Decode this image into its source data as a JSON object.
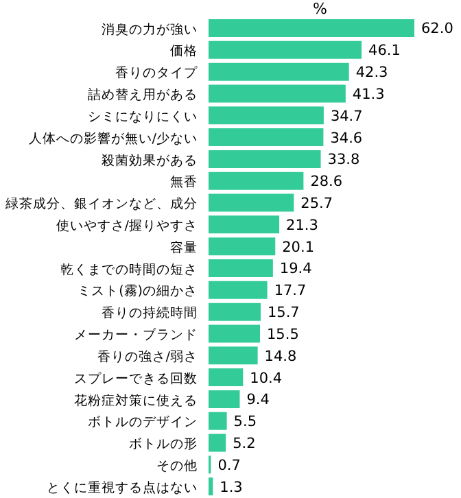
{
  "chart_data": {
    "type": "bar",
    "orientation": "horizontal",
    "xlabel": "%",
    "color": "#33cc99",
    "categories": [
      "消臭の力が強い",
      "価格",
      "香りのタイプ",
      "詰め替え用がある",
      "シミになりにくい",
      "人体への影響が無い/少ない",
      "殺菌効果がある",
      "無香",
      "緑茶成分、銀イオンなど、成分",
      "使いやすさ/握りやすさ",
      "容量",
      "乾くまでの時間の短さ",
      "ミスト(霧)の細かさ",
      "香りの持続時間",
      "メーカー・ブランド",
      "香りの強さ/弱さ",
      "スプレーできる回数",
      "花粉症対策に使える",
      "ボトルのデザイン",
      "ボトルの形",
      "その他",
      "とくに重視する点はない"
    ],
    "values": [
      62.0,
      46.1,
      42.3,
      41.3,
      34.7,
      34.6,
      33.8,
      28.6,
      25.7,
      21.3,
      20.1,
      19.4,
      17.7,
      15.7,
      15.5,
      14.8,
      10.4,
      9.4,
      5.5,
      5.2,
      0.7,
      1.3
    ],
    "value_labels": [
      "62.0",
      "46.1",
      "42.3",
      "41.3",
      "34.7",
      "34.6",
      "33.8",
      "28.6",
      "25.7",
      "21.3",
      "20.1",
      "19.4",
      "17.7",
      "15.7",
      "15.5",
      "14.8",
      "10.4",
      "9.4",
      "5.5",
      "5.2",
      "0.7",
      "1.3"
    ]
  }
}
